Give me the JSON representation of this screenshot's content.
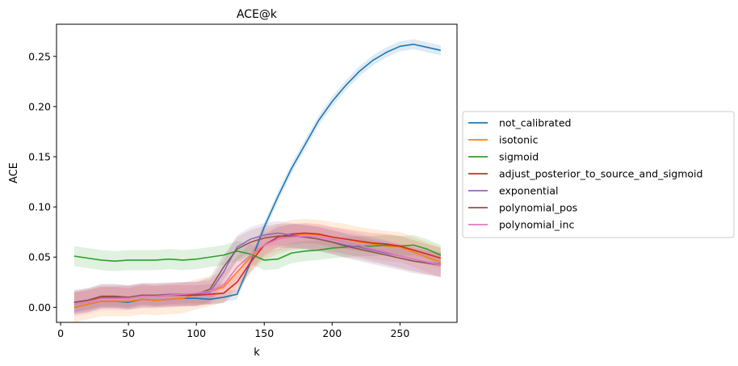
{
  "chart_data": {
    "type": "line",
    "title": "ACE@k",
    "xlabel": "k",
    "ylabel": "ACE",
    "xlim": [
      -3,
      292
    ],
    "ylim": [
      -0.015,
      0.282
    ],
    "xticks": [
      0,
      50,
      100,
      150,
      200,
      250
    ],
    "yticks": [
      0.0,
      0.05,
      0.1,
      0.15,
      0.2,
      0.25
    ],
    "ytick_labels": [
      "0.00",
      "0.05",
      "0.10",
      "0.15",
      "0.20",
      "0.25"
    ],
    "grid": false,
    "legend_position": "center-right-outside",
    "shaded_bands": true,
    "x": [
      10,
      20,
      30,
      40,
      50,
      60,
      70,
      80,
      90,
      100,
      110,
      120,
      130,
      140,
      150,
      160,
      170,
      180,
      190,
      200,
      210,
      220,
      230,
      240,
      250,
      260,
      270,
      280
    ],
    "series": [
      {
        "name": "not_calibrated",
        "color": "#1f77b4",
        "values": [
          0.0,
          0.003,
          0.006,
          0.006,
          0.005,
          0.008,
          0.007,
          0.008,
          0.009,
          0.009,
          0.008,
          0.01,
          0.013,
          0.045,
          0.08,
          0.11,
          0.138,
          0.162,
          0.186,
          0.205,
          0.221,
          0.235,
          0.246,
          0.254,
          0.26,
          0.262,
          0.259,
          0.256
        ],
        "band": 0.005
      },
      {
        "name": "isotonic",
        "color": "#ff7f0e",
        "values": [
          0.0,
          0.003,
          0.006,
          0.006,
          0.006,
          0.008,
          0.007,
          0.008,
          0.009,
          0.013,
          0.016,
          0.02,
          0.035,
          0.05,
          0.062,
          0.068,
          0.072,
          0.073,
          0.072,
          0.07,
          0.068,
          0.065,
          0.063,
          0.061,
          0.06,
          0.055,
          0.05,
          0.045
        ],
        "band": 0.015
      },
      {
        "name": "sigmoid",
        "color": "#2ca02c",
        "values": [
          0.051,
          0.049,
          0.047,
          0.046,
          0.047,
          0.047,
          0.047,
          0.048,
          0.047,
          0.048,
          0.05,
          0.052,
          0.056,
          0.053,
          0.047,
          0.048,
          0.054,
          0.056,
          0.057,
          0.059,
          0.06,
          0.061,
          0.061,
          0.062,
          0.061,
          0.062,
          0.058,
          0.052
        ],
        "band": 0.01
      },
      {
        "name": "adjust_posterior_to_source_and_sigmoid",
        "color": "#d62728",
        "values": [
          0.005,
          0.007,
          0.01,
          0.01,
          0.009,
          0.012,
          0.011,
          0.012,
          0.012,
          0.012,
          0.013,
          0.014,
          0.025,
          0.045,
          0.062,
          0.07,
          0.073,
          0.074,
          0.073,
          0.07,
          0.068,
          0.066,
          0.064,
          0.063,
          0.061,
          0.057,
          0.053,
          0.049
        ],
        "band": 0.01
      },
      {
        "name": "exponential",
        "color": "#9467bd",
        "values": [
          0.005,
          0.007,
          0.011,
          0.011,
          0.01,
          0.012,
          0.012,
          0.013,
          0.013,
          0.013,
          0.015,
          0.035,
          0.06,
          0.068,
          0.072,
          0.074,
          0.072,
          0.07,
          0.068,
          0.065,
          0.062,
          0.06,
          0.057,
          0.054,
          0.051,
          0.048,
          0.045,
          0.043
        ],
        "band": 0.012
      },
      {
        "name": "polynomial_pos",
        "color": "#8c564b",
        "values": [
          0.005,
          0.007,
          0.011,
          0.011,
          0.01,
          0.012,
          0.012,
          0.012,
          0.013,
          0.013,
          0.018,
          0.04,
          0.058,
          0.065,
          0.069,
          0.071,
          0.071,
          0.07,
          0.068,
          0.065,
          0.061,
          0.058,
          0.055,
          0.052,
          0.049,
          0.046,
          0.044,
          0.042
        ],
        "band": 0.012
      },
      {
        "name": "polynomial_inc",
        "color": "#e377c2",
        "values": [
          0.003,
          0.005,
          0.009,
          0.009,
          0.009,
          0.011,
          0.011,
          0.012,
          0.013,
          0.014,
          0.016,
          0.022,
          0.04,
          0.052,
          0.062,
          0.068,
          0.07,
          0.071,
          0.07,
          0.068,
          0.065,
          0.062,
          0.058,
          0.055,
          0.051,
          0.048,
          0.045,
          0.042
        ],
        "band": 0.012
      }
    ]
  }
}
